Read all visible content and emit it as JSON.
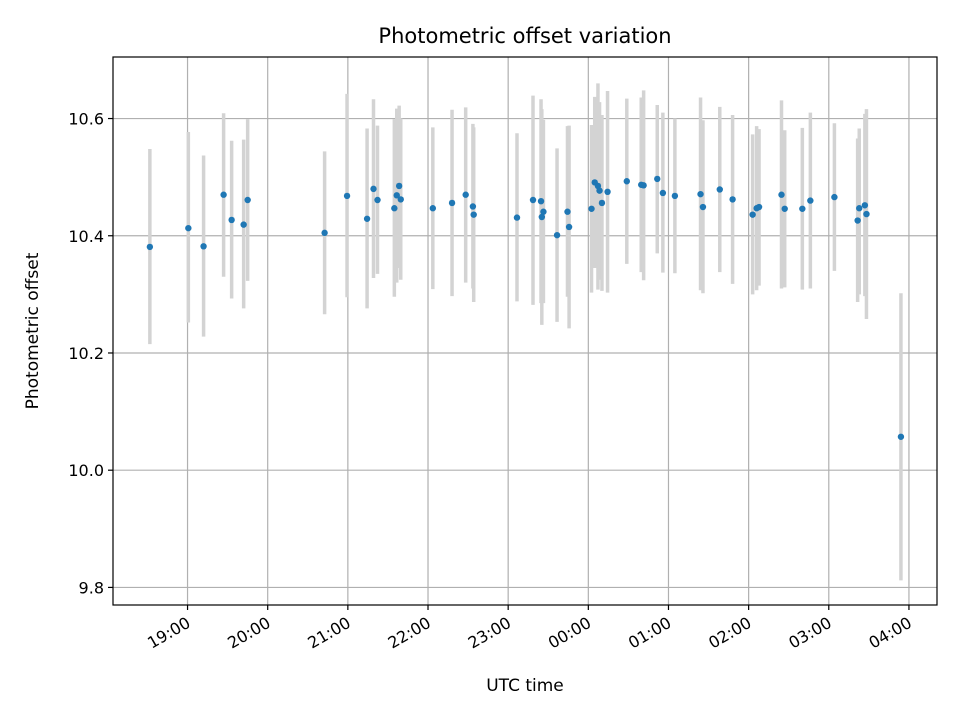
{
  "chart_data": {
    "type": "scatter",
    "title": "Photometric offset variation",
    "xlabel": "UTC time",
    "ylabel": "Photometric offset",
    "x_unit": "hours since 00:00 UTC",
    "xlim": [
      -5.93,
      4.35
    ],
    "ylim": [
      9.77,
      10.705
    ],
    "x_ticks": [
      {
        "value": -5,
        "label": "19:00"
      },
      {
        "value": -4,
        "label": "20:00"
      },
      {
        "value": -3,
        "label": "21:00"
      },
      {
        "value": -2,
        "label": "22:00"
      },
      {
        "value": -1,
        "label": "23:00"
      },
      {
        "value": 0,
        "label": "00:00"
      },
      {
        "value": 1,
        "label": "01:00"
      },
      {
        "value": 2,
        "label": "02:00"
      },
      {
        "value": 3,
        "label": "03:00"
      },
      {
        "value": 4,
        "label": "04:00"
      }
    ],
    "y_ticks": [
      {
        "value": 9.8,
        "label": "9.8"
      },
      {
        "value": 10.0,
        "label": "10.0"
      },
      {
        "value": 10.2,
        "label": "10.2"
      },
      {
        "value": 10.4,
        "label": "10.4"
      },
      {
        "value": 10.6,
        "label": "10.6"
      }
    ],
    "grid": true,
    "colors": {
      "point": "#1f77b4",
      "errorbar": "#d3d3d3",
      "grid": "#b0b0b0"
    },
    "points": [
      {
        "x": -5.47,
        "y": 10.381,
        "lo": 10.215,
        "hi": 10.548
      },
      {
        "x": -4.99,
        "y": 10.413,
        "lo": 10.252,
        "hi": 10.577
      },
      {
        "x": -4.8,
        "y": 10.382,
        "lo": 10.228,
        "hi": 10.537
      },
      {
        "x": -4.55,
        "y": 10.47,
        "lo": 10.33,
        "hi": 10.609
      },
      {
        "x": -4.45,
        "y": 10.427,
        "lo": 10.293,
        "hi": 10.562
      },
      {
        "x": -4.3,
        "y": 10.419,
        "lo": 10.276,
        "hi": 10.564
      },
      {
        "x": -4.25,
        "y": 10.461,
        "lo": 10.323,
        "hi": 10.599
      },
      {
        "x": -3.29,
        "y": 10.405,
        "lo": 10.266,
        "hi": 10.544
      },
      {
        "x": -3.01,
        "y": 10.468,
        "lo": 10.295,
        "hi": 10.642
      },
      {
        "x": -2.76,
        "y": 10.429,
        "lo": 10.276,
        "hi": 10.583
      },
      {
        "x": -2.68,
        "y": 10.48,
        "lo": 10.328,
        "hi": 10.633
      },
      {
        "x": -2.63,
        "y": 10.461,
        "lo": 10.335,
        "hi": 10.588
      },
      {
        "x": -2.42,
        "y": 10.447,
        "lo": 10.296,
        "hi": 10.599
      },
      {
        "x": -2.39,
        "y": 10.469,
        "lo": 10.32,
        "hi": 10.617
      },
      {
        "x": -2.36,
        "y": 10.485,
        "lo": 10.345,
        "hi": 10.622
      },
      {
        "x": -2.34,
        "y": 10.462,
        "lo": 10.325,
        "hi": 10.6
      },
      {
        "x": -1.94,
        "y": 10.447,
        "lo": 10.309,
        "hi": 10.585
      },
      {
        "x": -1.7,
        "y": 10.456,
        "lo": 10.297,
        "hi": 10.615
      },
      {
        "x": -1.53,
        "y": 10.47,
        "lo": 10.32,
        "hi": 10.619
      },
      {
        "x": -1.44,
        "y": 10.45,
        "lo": 10.31,
        "hi": 10.591
      },
      {
        "x": -1.43,
        "y": 10.436,
        "lo": 10.287,
        "hi": 10.585
      },
      {
        "x": -0.89,
        "y": 10.431,
        "lo": 10.288,
        "hi": 10.575
      },
      {
        "x": -0.69,
        "y": 10.461,
        "lo": 10.282,
        "hi": 10.639
      },
      {
        "x": -0.59,
        "y": 10.459,
        "lo": 10.285,
        "hi": 10.633
      },
      {
        "x": -0.58,
        "y": 10.432,
        "lo": 10.248,
        "hi": 10.616
      },
      {
        "x": -0.56,
        "y": 10.441,
        "lo": 10.285,
        "hi": 10.598
      },
      {
        "x": -0.39,
        "y": 10.401,
        "lo": 10.253,
        "hi": 10.549
      },
      {
        "x": -0.26,
        "y": 10.441,
        "lo": 10.296,
        "hi": 10.587
      },
      {
        "x": -0.24,
        "y": 10.415,
        "lo": 10.242,
        "hi": 10.588
      },
      {
        "x": 0.04,
        "y": 10.446,
        "lo": 10.303,
        "hi": 10.589
      },
      {
        "x": 0.08,
        "y": 10.491,
        "lo": 10.345,
        "hi": 10.637
      },
      {
        "x": 0.12,
        "y": 10.485,
        "lo": 10.308,
        "hi": 10.66
      },
      {
        "x": 0.14,
        "y": 10.477,
        "lo": 10.325,
        "hi": 10.628
      },
      {
        "x": 0.17,
        "y": 10.456,
        "lo": 10.306,
        "hi": 10.606
      },
      {
        "x": 0.24,
        "y": 10.475,
        "lo": 10.303,
        "hi": 10.647
      },
      {
        "x": 0.48,
        "y": 10.493,
        "lo": 10.352,
        "hi": 10.634
      },
      {
        "x": 0.66,
        "y": 10.487,
        "lo": 10.338,
        "hi": 10.636
      },
      {
        "x": 0.69,
        "y": 10.486,
        "lo": 10.324,
        "hi": 10.648
      },
      {
        "x": 0.86,
        "y": 10.497,
        "lo": 10.37,
        "hi": 10.623
      },
      {
        "x": 0.93,
        "y": 10.473,
        "lo": 10.337,
        "hi": 10.61
      },
      {
        "x": 1.08,
        "y": 10.468,
        "lo": 10.336,
        "hi": 10.6
      },
      {
        "x": 1.4,
        "y": 10.471,
        "lo": 10.307,
        "hi": 10.636
      },
      {
        "x": 1.43,
        "y": 10.449,
        "lo": 10.302,
        "hi": 10.597
      },
      {
        "x": 1.64,
        "y": 10.479,
        "lo": 10.338,
        "hi": 10.62
      },
      {
        "x": 1.8,
        "y": 10.462,
        "lo": 10.318,
        "hi": 10.606
      },
      {
        "x": 2.05,
        "y": 10.436,
        "lo": 10.3,
        "hi": 10.573
      },
      {
        "x": 2.1,
        "y": 10.447,
        "lo": 10.307,
        "hi": 10.587
      },
      {
        "x": 2.13,
        "y": 10.449,
        "lo": 10.315,
        "hi": 10.582
      },
      {
        "x": 2.41,
        "y": 10.47,
        "lo": 10.31,
        "hi": 10.631
      },
      {
        "x": 2.45,
        "y": 10.446,
        "lo": 10.312,
        "hi": 10.58
      },
      {
        "x": 2.67,
        "y": 10.446,
        "lo": 10.308,
        "hi": 10.584
      },
      {
        "x": 2.77,
        "y": 10.46,
        "lo": 10.31,
        "hi": 10.61
      },
      {
        "x": 3.07,
        "y": 10.466,
        "lo": 10.34,
        "hi": 10.592
      },
      {
        "x": 3.36,
        "y": 10.426,
        "lo": 10.287,
        "hi": 10.566
      },
      {
        "x": 3.38,
        "y": 10.447,
        "lo": 10.3,
        "hi": 10.583
      },
      {
        "x": 3.45,
        "y": 10.452,
        "lo": 10.297,
        "hi": 10.608
      },
      {
        "x": 3.47,
        "y": 10.437,
        "lo": 10.258,
        "hi": 10.616
      },
      {
        "x": 3.9,
        "y": 10.057,
        "lo": 9.812,
        "hi": 10.302
      }
    ]
  }
}
